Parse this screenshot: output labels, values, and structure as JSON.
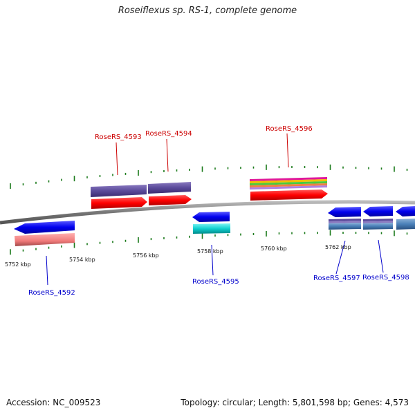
{
  "title": "Roseiflexus sp. RS-1, complete genome",
  "footer": {
    "accession": "Accession: NC_009523",
    "summary": "Topology: circular; Length: 5,801,598 bp; Genes: 4,573"
  },
  "kbp_labels": [
    "5752 kbp",
    "5754 kbp",
    "5756 kbp",
    "5758 kbp",
    "5760 kbp",
    "5762 kbp"
  ],
  "genes": [
    {
      "name": "RoseRS_4592",
      "strand": "reverse",
      "color": "#0000cc"
    },
    {
      "name": "RoseRS_4593",
      "strand": "forward",
      "color": "#cc0000"
    },
    {
      "name": "RoseRS_4594",
      "strand": "forward",
      "color": "#cc0000"
    },
    {
      "name": "RoseRS_4595",
      "strand": "reverse",
      "color": "#0000cc"
    },
    {
      "name": "RoseRS_4596",
      "strand": "forward",
      "color": "#cc0000"
    },
    {
      "name": "RoseRS_4597",
      "strand": "reverse",
      "color": "#0000cc"
    },
    {
      "name": "RoseRS_4598",
      "strand": "reverse",
      "color": "#0000cc"
    }
  ],
  "colors": {
    "forward_gene": "#ff0000",
    "reverse_gene": "#0000ee",
    "forward_label": "#cc0000",
    "reverse_label": "#0000cc",
    "tick": "#1a7a1a",
    "backbone": "#888888"
  }
}
